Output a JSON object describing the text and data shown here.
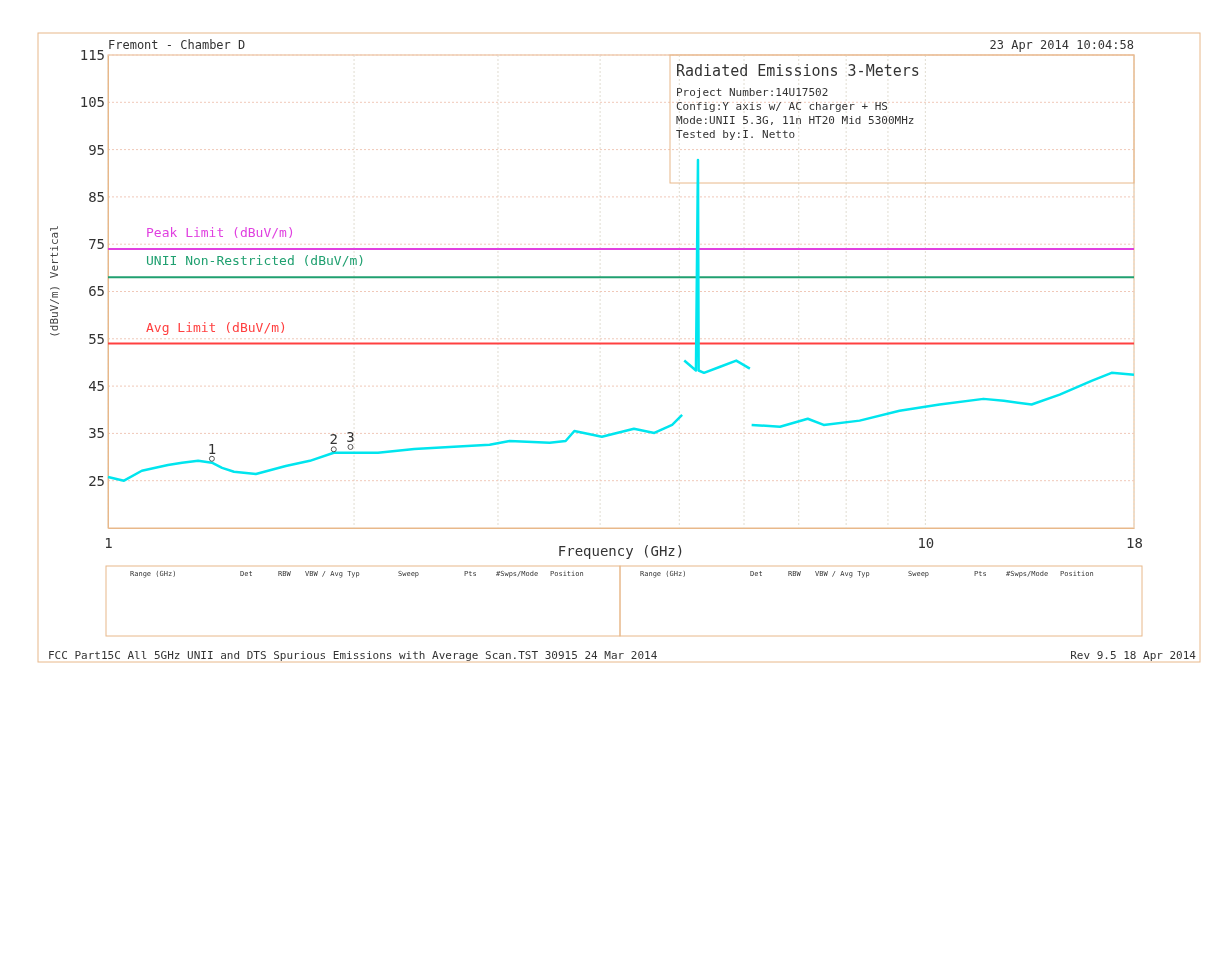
{
  "chart_data": {
    "type": "line",
    "title": "Radiated Emissions 3-Meters",
    "xlabel": "Frequency (GHz)",
    "ylabel": "(dBuV/m) Vertical",
    "log": "x",
    "grid": true,
    "marker": "none",
    "line_style": "solid",
    "xlim": [
      1,
      18
    ],
    "xticks": [
      1,
      {
        "value": 2,
        "label": null
      },
      {
        "value": 3,
        "label": null
      },
      {
        "value": 4,
        "label": null
      },
      {
        "value": 5,
        "label": null
      },
      {
        "value": 6,
        "label": null
      },
      {
        "value": 7,
        "label": null
      },
      {
        "value": 8,
        "label": null
      },
      {
        "value": 9,
        "label": null
      },
      10,
      18
    ],
    "ylim": [
      15,
      115
    ],
    "yticks": [
      25,
      35,
      45,
      55,
      65,
      75,
      85,
      95,
      105,
      115
    ],
    "ref_lines": [
      {
        "axis": "y",
        "value": 74,
        "label": "Peak Limit (dBuV/m)",
        "color": "#e040e0"
      },
      {
        "axis": "y",
        "value": 68,
        "label": "UNII Non-Restricted (dBuV/m)",
        "color": "#20a070"
      },
      {
        "axis": "y",
        "value": 54,
        "label": "Avg Limit (dBuV/m)",
        "color": "#ff4040"
      }
    ],
    "series": [
      {
        "color": "#00e5ee",
        "x": [
          1.0,
          1.046,
          1.1,
          1.184,
          1.232,
          1.289,
          1.34,
          1.379,
          1.426,
          1.517,
          1.65,
          1.766,
          1.889,
          2.0,
          2.14,
          2.37,
          2.65,
          2.93,
          3.1,
          3.47,
          3.63,
          3.72,
          4.02,
          4.4,
          4.66,
          4.9,
          5.04
        ],
        "values": [
          25.8,
          25.0,
          27.1,
          28.3,
          28.8,
          29.2,
          28.8,
          27.7,
          26.9,
          26.4,
          28.1,
          29.2,
          30.9,
          30.9,
          30.9,
          31.7,
          32.2,
          32.6,
          33.4,
          33.0,
          33.4,
          35.5,
          34.3,
          36.0,
          35.1,
          36.8,
          38.9
        ]
      },
      {
        "color": "#00e5ee",
        "x": [
          5.07,
          5.24,
          5.27,
          5.28,
          5.36,
          5.61,
          5.87,
          6.1
        ],
        "values": [
          50.4,
          48.3,
          92.8,
          48.3,
          47.8,
          49.1,
          50.4,
          48.7
        ]
      },
      {
        "color": "#00e5ee",
        "x": [
          6.13,
          6.64,
          7.18,
          7.51,
          8.31,
          9.3,
          10.41,
          11.78,
          12.47,
          13.49,
          14.6,
          15.97,
          16.9,
          18.0
        ],
        "values": [
          36.8,
          36.4,
          38.1,
          36.8,
          37.7,
          39.8,
          41.1,
          42.3,
          41.9,
          41.1,
          43.2,
          46.1,
          47.8,
          47.4
        ]
      }
    ],
    "annotations": [
      "Fremont - Chamber D",
      "23 Apr 2014   10:04:58",
      "Project Number:14U17502",
      "Config:Y axis w/ AC charger + HS",
      "Mode:UNII 5.3G, 11n HT20 Mid 5300MHz",
      "Tested by:I. Netto",
      "Range (GHz)\tDet\tRBW\tVBW / Avg Typ\tSweep\tPts\t#Swps/Mode\tPosition",
      "Range (GHz)\tDet\tRBW\tVBW / Avg Typ\tSweep\tPts\t#Swps/Mode\tPosition",
      "FCC Part15C All 5GHz UNII and DTS Spurious Emissions with Average Scan.TST 30915 24 Mar 2014",
      "Rev 9.5 18 Apr 2014",
      {
        "text": "1",
        "x": 1.34,
        "y": 29
      },
      {
        "text": "2",
        "x": 1.889,
        "y": 31
      },
      {
        "text": "3",
        "x": 1.98,
        "y": 31.5
      }
    ]
  }
}
